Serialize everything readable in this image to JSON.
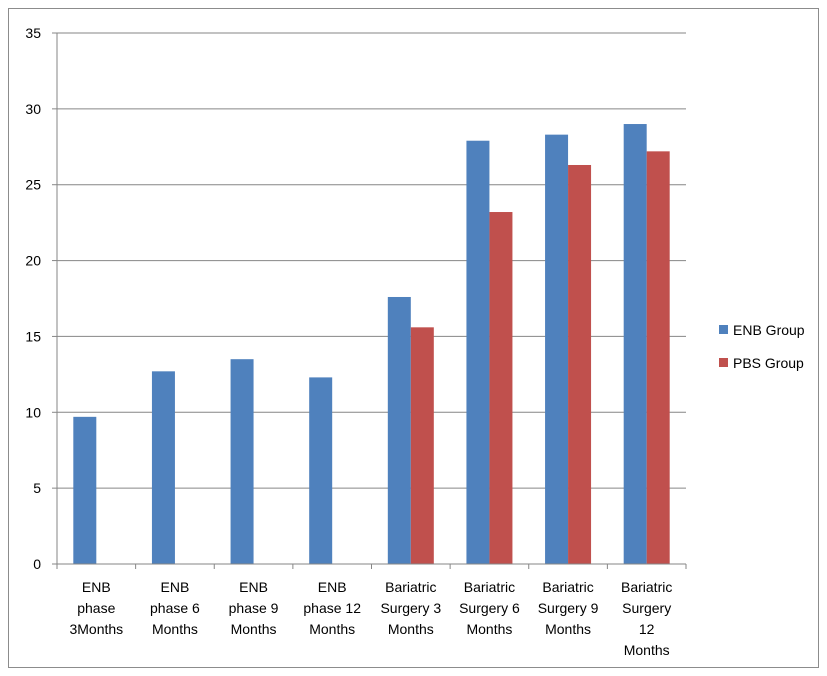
{
  "chart_data": {
    "type": "bar",
    "categories": [
      [
        "ENB",
        "phase",
        "3Months"
      ],
      [
        "ENB",
        "phase 6",
        "Months"
      ],
      [
        "ENB",
        "phase 9",
        "Months"
      ],
      [
        "ENB",
        "phase 12",
        "Months"
      ],
      [
        "Bariatric",
        "Surgery 3",
        "Months"
      ],
      [
        "Bariatric",
        "Surgery 6",
        "Months"
      ],
      [
        "Bariatric",
        "Surgery 9",
        "Months"
      ],
      [
        "Bariatric",
        "Surgery",
        "12",
        "Months"
      ]
    ],
    "series": [
      {
        "name": "ENB Group",
        "color": "#4f81bd",
        "values": [
          9.7,
          12.7,
          13.5,
          12.3,
          17.6,
          27.9,
          28.3,
          29.0
        ]
      },
      {
        "name": "PBS Group",
        "color": "#c0504d",
        "values": [
          null,
          null,
          null,
          null,
          15.6,
          23.2,
          26.3,
          27.2
        ]
      }
    ],
    "ylim": [
      0,
      35
    ],
    "yticks": [
      0,
      5,
      10,
      15,
      20,
      25,
      30,
      35
    ],
    "grid": true,
    "legend_position": "right"
  }
}
